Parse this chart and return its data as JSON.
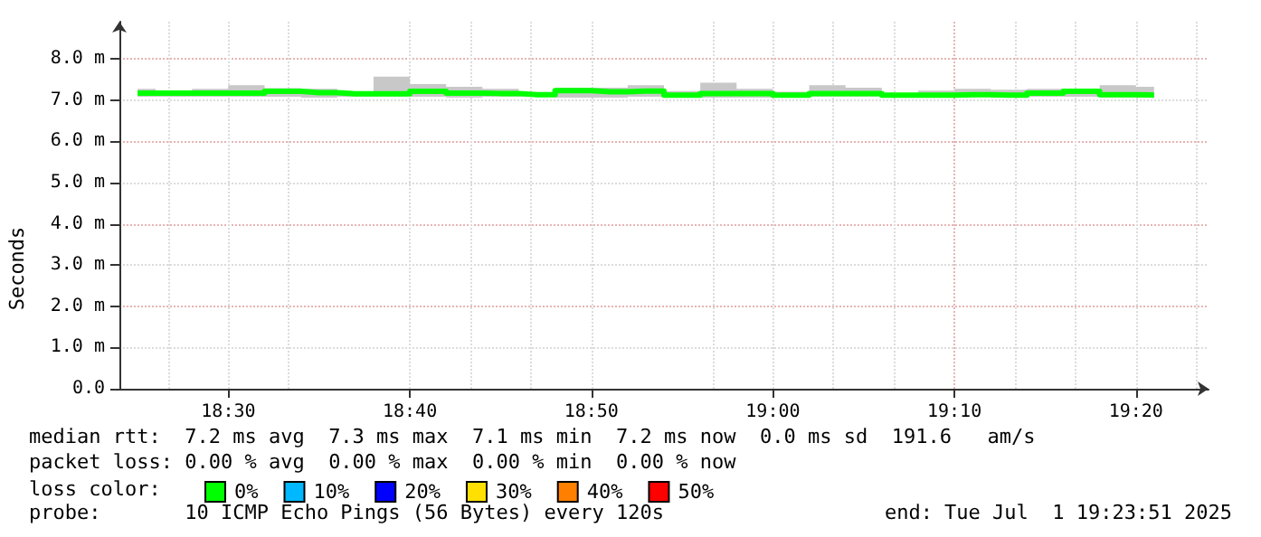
{
  "chart_data": {
    "type": "step",
    "ylabel": "Seconds",
    "x": [
      "2025-07-01T18:25",
      "2025-07-01T18:27",
      "2025-07-01T18:29",
      "2025-07-01T18:31",
      "2025-07-01T18:33",
      "2025-07-01T18:35",
      "2025-07-01T18:37",
      "2025-07-01T18:39",
      "2025-07-01T18:41",
      "2025-07-01T18:43",
      "2025-07-01T18:45",
      "2025-07-01T18:47",
      "2025-07-01T18:49",
      "2025-07-01T18:51",
      "2025-07-01T18:53",
      "2025-07-01T18:55",
      "2025-07-01T18:57",
      "2025-07-01T18:59",
      "2025-07-01T19:01",
      "2025-07-01T19:03",
      "2025-07-01T19:05",
      "2025-07-01T19:07",
      "2025-07-01T19:09",
      "2025-07-01T19:11",
      "2025-07-01T19:13",
      "2025-07-01T19:15",
      "2025-07-01T19:17",
      "2025-07-01T19:19",
      "2025-07-01T19:21"
    ],
    "series": [
      {
        "name": "0%",
        "color": "#00ff00",
        "values": [
          7.17,
          7.17,
          7.17,
          7.17,
          7.21,
          7.18,
          7.15,
          7.15,
          7.21,
          7.17,
          7.16,
          7.13,
          7.23,
          7.2,
          7.22,
          7.12,
          7.16,
          7.16,
          7.12,
          7.16,
          7.16,
          7.12,
          7.12,
          7.13,
          7.12,
          7.17,
          7.21,
          7.13,
          7.12
        ],
        "lower": [
          7.08,
          7.08,
          7.08,
          7.08,
          7.08,
          7.06,
          7.08,
          7.08,
          7.08,
          7.06,
          7.08,
          7.08,
          7.06,
          7.06,
          7.08,
          7.06,
          7.06,
          7.06,
          7.08,
          7.08,
          7.08,
          7.08,
          7.06,
          7.08,
          7.06,
          7.08,
          7.08,
          7.06,
          7.06
        ],
        "upper": [
          7.27,
          7.17,
          7.27,
          7.36,
          7.29,
          7.27,
          7.17,
          7.57,
          7.39,
          7.32,
          7.27,
          7.17,
          7.3,
          7.3,
          7.36,
          7.22,
          7.42,
          7.27,
          7.2,
          7.36,
          7.3,
          7.17,
          7.23,
          7.27,
          7.25,
          7.27,
          7.27,
          7.36,
          7.32
        ]
      },
      {
        "name": "10%",
        "color": "#00b8ff",
        "values": [
          null,
          null,
          null,
          null,
          null,
          null,
          null,
          null,
          null,
          null,
          null,
          null,
          null,
          null,
          null,
          null,
          null,
          null,
          null,
          null,
          null,
          null,
          null,
          null,
          null,
          null,
          null,
          null,
          null
        ]
      },
      {
        "name": "20%",
        "color": "#0000ff",
        "values": [
          null,
          null,
          null,
          null,
          null,
          null,
          null,
          null,
          null,
          null,
          null,
          null,
          null,
          null,
          null,
          null,
          null,
          null,
          null,
          null,
          null,
          null,
          null,
          null,
          null,
          null,
          null,
          null,
          null
        ]
      },
      {
        "name": "30%",
        "color": "#ffe000",
        "values": [
          null,
          null,
          null,
          null,
          null,
          null,
          null,
          null,
          null,
          null,
          null,
          null,
          null,
          null,
          null,
          null,
          null,
          null,
          null,
          null,
          null,
          null,
          null,
          null,
          null,
          null,
          null,
          null,
          null
        ]
      },
      {
        "name": "40%",
        "color": "#ff7f00",
        "values": [
          null,
          null,
          null,
          null,
          null,
          null,
          null,
          null,
          null,
          null,
          null,
          null,
          null,
          null,
          null,
          null,
          null,
          null,
          null,
          null,
          null,
          null,
          null,
          null,
          null,
          null,
          null,
          null,
          null
        ]
      },
      {
        "name": "50%",
        "color": "#ff0000",
        "values": [
          null,
          null,
          null,
          null,
          null,
          null,
          null,
          null,
          null,
          null,
          null,
          null,
          null,
          null,
          null,
          null,
          null,
          null,
          null,
          null,
          null,
          null,
          null,
          null,
          null,
          null,
          null,
          null,
          null
        ]
      }
    ],
    "legend": "bottom",
    "legend_title": "loss color:",
    "xlim": [
      "2025-07-01T18:24",
      "2025-07-01T19:24"
    ],
    "xticks": [
      {
        "value": "2025-07-01T18:30",
        "label": "18:30"
      },
      {
        "value": "2025-07-01T18:40",
        "label": "18:40"
      },
      {
        "value": "2025-07-01T18:50",
        "label": "18:50"
      },
      {
        "value": "2025-07-01T19:00",
        "label": "19:00"
      },
      {
        "value": "2025-07-01T19:10",
        "label": "19:10"
      },
      {
        "value": "2025-07-01T19:20",
        "label": "19:20"
      }
    ],
    "ylim": [
      0,
      8.9
    ],
    "yticks": [
      {
        "value": 0,
        "label": "0.0"
      },
      {
        "value": 1,
        "label": "1.0 m"
      },
      {
        "value": 2,
        "label": "2.0 m"
      },
      {
        "value": 3,
        "label": "3.0 m"
      },
      {
        "value": 4,
        "label": "4.0 m"
      },
      {
        "value": 5,
        "label": "5.0 m"
      },
      {
        "value": 6,
        "label": "6.0 m"
      },
      {
        "value": 7,
        "label": "7.0 m"
      },
      {
        "value": 8,
        "label": "8.0 m"
      }
    ],
    "grid": true,
    "marker": "none",
    "line_style": "solid",
    "annotations": [
      "median rtt:  7.2 ms avg  7.3 ms max  7.1 ms min  7.2 ms now  0.0 ms sd  191.6   am/s",
      "packet loss: 0.00 % avg  0.00 % max  0.00 % min  0.00 % now",
      "probe:       10 ICMP Echo Pings (56 Bytes) every 120s",
      "end: Tue Jul  1 19:23:51 2025"
    ]
  }
}
